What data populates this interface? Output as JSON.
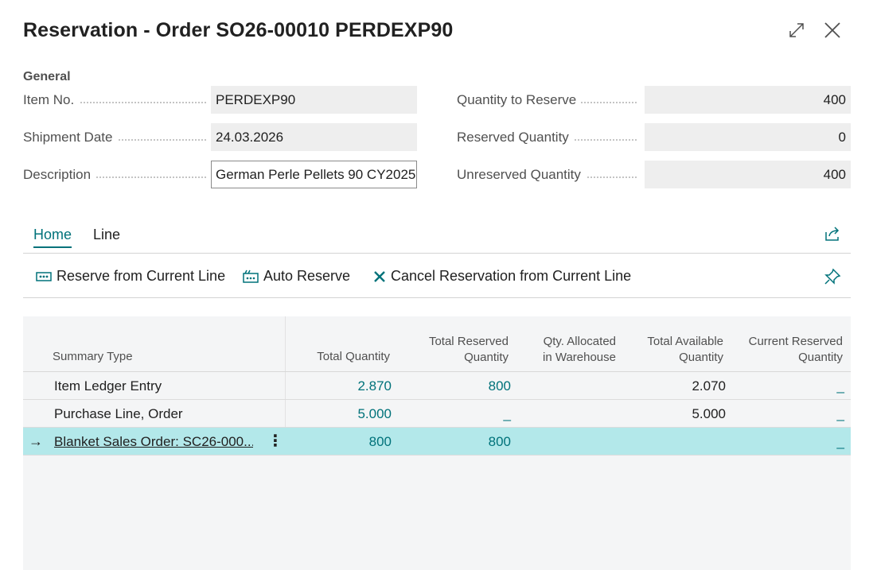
{
  "window": {
    "title": "Reservation - Order SO26-00010 PERDEXP90",
    "expand_icon": "expand-icon",
    "close_icon": "close-icon"
  },
  "general": {
    "section_label": "General",
    "item_no": {
      "label": "Item No.",
      "value": "PERDEXP90"
    },
    "shipment_date": {
      "label": "Shipment Date",
      "value": "24.03.2026"
    },
    "description": {
      "label": "Description",
      "value": "German Perle Pellets 90 CY2025"
    },
    "quantity_to_reserve": {
      "label": "Quantity to Reserve",
      "value": "400"
    },
    "reserved_quantity": {
      "label": "Reserved Quantity",
      "value": "0"
    },
    "unreserved_quantity": {
      "label": "Unreserved Quantity",
      "value": "400"
    }
  },
  "tabs": {
    "home": "Home",
    "line": "Line"
  },
  "actions": {
    "reserve_from_current_line": "Reserve from Current Line",
    "auto_reserve": "Auto Reserve",
    "cancel_reservation": "Cancel Reservation from Current Line"
  },
  "grid": {
    "headers": {
      "summary_type": "Summary Type",
      "total_quantity": "Total Quantity",
      "total_reserved_1": "Total Reserved",
      "total_reserved_2": "Quantity",
      "qty_allocated_1": "Qty. Allocated",
      "qty_allocated_2": "in Warehouse",
      "total_available_1": "Total Available",
      "total_available_2": "Quantity",
      "current_reserved_1": "Current Reserved",
      "current_reserved_2": "Quantity"
    },
    "rows": [
      {
        "summary_type": "Item Ledger Entry",
        "total_quantity": "2.870",
        "total_reserved": "800",
        "qty_allocated": "",
        "total_available": "2.070",
        "current_reserved": "_"
      },
      {
        "summary_type": "Purchase Line, Order",
        "total_quantity": "5.000",
        "total_reserved": "_",
        "qty_allocated": "",
        "total_available": "5.000",
        "current_reserved": "_"
      },
      {
        "summary_type": "Blanket Sales Order: SC26-000...",
        "total_quantity": "800",
        "total_reserved": "800",
        "qty_allocated": "",
        "total_available": "",
        "current_reserved": "_",
        "selected": true,
        "row_marker": "→",
        "menu": "⋮"
      }
    ]
  },
  "colors": {
    "accent": "#00727a",
    "selected_row": "#b3e8ea",
    "field_bg": "#eeeeee",
    "grid_bg": "#f4f5f6"
  }
}
